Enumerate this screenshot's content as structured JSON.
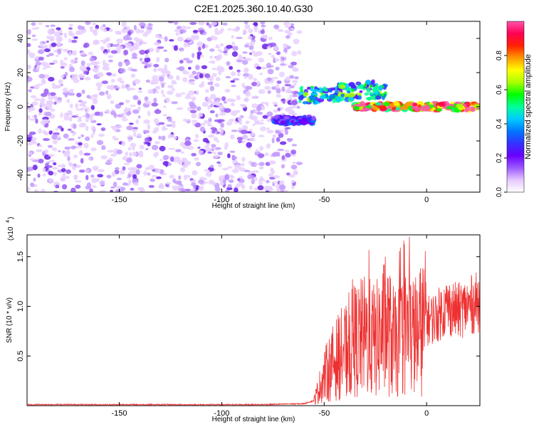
{
  "chart_data": [
    {
      "type": "heatmap",
      "title": "C2E1.2025.360.10.40.G30",
      "xlabel": "Height of straight line (km)",
      "ylabel": "Frequency (Hz)",
      "xlim": [
        -195,
        26
      ],
      "ylim": [
        -50,
        50
      ],
      "xticks": [
        -150,
        -100,
        -50,
        0
      ],
      "yticks": [
        -40,
        -20,
        0,
        20,
        40
      ],
      "colorbar": {
        "label": "Normalized spectral amplitude",
        "range": [
          0,
          1
        ],
        "ticks": [
          "0.0",
          "0.2",
          "0.4",
          "0.6",
          "0.8"
        ],
        "colors": [
          "#ffffff",
          "#e6c8ff",
          "#9b59ff",
          "#6a00ff",
          "#3333ff",
          "#0077ff",
          "#00ccff",
          "#00ff99",
          "#00ff00",
          "#aaff00",
          "#ffff00",
          "#ff9900",
          "#ff2200",
          "#ff0055",
          "#ff55aa"
        ]
      },
      "regions": [
        {
          "name": "noise",
          "x": [
            -195,
            -62
          ],
          "y": [
            -50,
            50
          ],
          "amplitude": 0.08
        },
        {
          "name": "upper-branch",
          "x": [
            -62,
            -20
          ],
          "y": [
            2,
            12
          ],
          "amplitude": 0.45
        },
        {
          "name": "lower-branch",
          "x": [
            -75,
            -55
          ],
          "y": [
            -10,
            -6
          ],
          "amplitude": 0.25
        },
        {
          "name": "zero-line",
          "x": [
            -35,
            26
          ],
          "y": [
            -2,
            2
          ],
          "amplitude": 0.9
        }
      ]
    },
    {
      "type": "line",
      "title": "",
      "xlabel": "Height of straight line (km)",
      "ylabel": "SNR (10 * v/v)",
      "multiplier_label": "(x10",
      "multiplier_exp": "4",
      "xlim": [
        -195,
        26
      ],
      "ylim": [
        0,
        1.72
      ],
      "xticks": [
        -150,
        -100,
        -50,
        0
      ],
      "yticks": [
        0.5,
        1.0,
        1.5
      ],
      "ytick_labels": [
        "0.5",
        "1.0",
        "1.5"
      ],
      "series": [
        {
          "name": "SNR",
          "color": "#ee3030",
          "x": [
            -195,
            -180,
            -160,
            -140,
            -120,
            -100,
            -80,
            -60,
            -55,
            -50,
            -45,
            -40,
            -35,
            -30,
            -25,
            -20,
            -15,
            -10,
            -5,
            0,
            5,
            10,
            15,
            20,
            26
          ],
          "values": [
            0.01,
            0.012,
            0.01,
            0.011,
            0.01,
            0.01,
            0.011,
            0.02,
            0.05,
            0.3,
            0.45,
            0.55,
            0.65,
            0.7,
            0.65,
            0.8,
            0.6,
            0.75,
            0.7,
            0.85,
            0.9,
            1.0,
            0.95,
            1.0,
            1.05
          ]
        }
      ]
    }
  ]
}
